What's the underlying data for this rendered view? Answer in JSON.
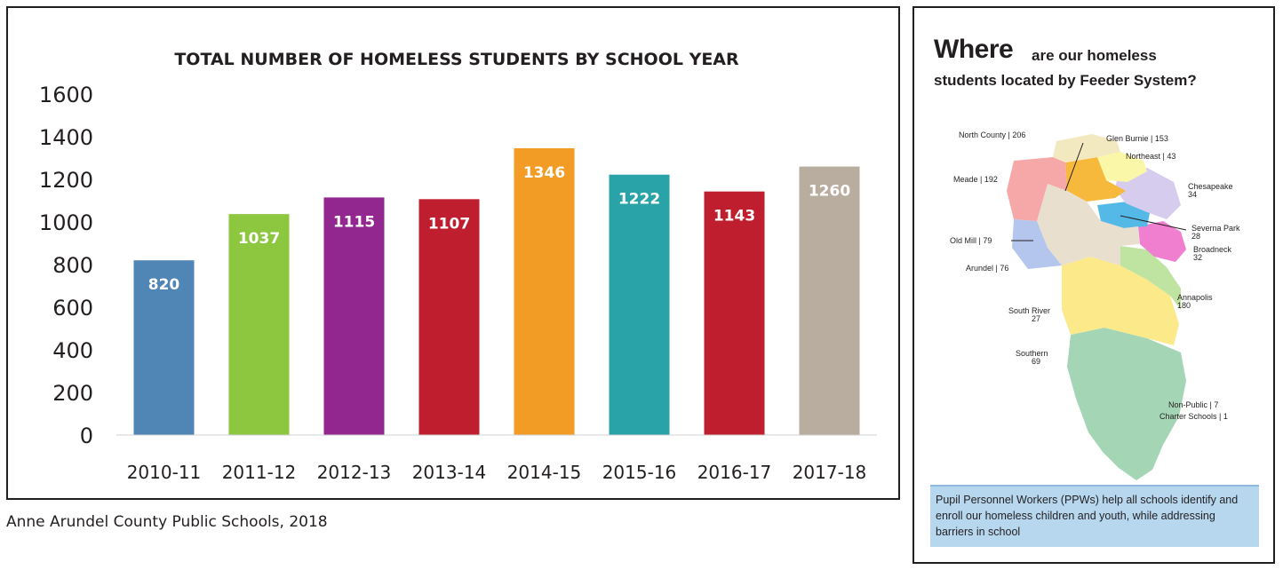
{
  "chart_data": {
    "type": "bar",
    "title": "TOTAL NUMBER OF HOMELESS STUDENTS BY SCHOOL YEAR",
    "categories": [
      "2010-11",
      "2011-12",
      "2012-13",
      "2013-14",
      "2014-15",
      "2015-16",
      "2016-17",
      "2017-18"
    ],
    "values": [
      820,
      1037,
      1115,
      1107,
      1346,
      1222,
      1143,
      1260
    ],
    "value_labels": [
      "820",
      "1037",
      "1115",
      "1107",
      "1346",
      "1222",
      "1143",
      "1260"
    ],
    "colors": [
      "#4f86b6",
      "#8dc63f",
      "#92278f",
      "#be1e2d",
      "#f29b25",
      "#29a3a8",
      "#be1e2d",
      "#b9ada0"
    ],
    "ylim": [
      0,
      1600
    ],
    "yticks": [
      "0",
      "200",
      "400",
      "600",
      "800",
      "1000",
      "1200",
      "1400",
      "1600"
    ],
    "xlabel": "",
    "ylabel": "",
    "grid": false,
    "legend": "none"
  },
  "source_note": "Anne Arundel County Public Schools, 2018",
  "map_panel": {
    "title_big": "Where",
    "title_rest": "are our homeless",
    "title_line2": "students located by Feeder System?",
    "regions": [
      {
        "name": "North County | 206",
        "color": "#f3e9c0"
      },
      {
        "name": "Glen Burnie | 153",
        "color": "#f6b93b"
      },
      {
        "name": "Northeast | 43",
        "color": "#fbf7a8"
      },
      {
        "name": "Meade | 192",
        "color": "#f6a7a8"
      },
      {
        "name": "Chesapeake 34",
        "color": "#d6ccee"
      },
      {
        "name": "Severna Park 28",
        "color": "#55b9e8"
      },
      {
        "name": "Old Mill | 79",
        "color": "#b4c6ee"
      },
      {
        "name": "Broadneck 32",
        "color": "#f07fd0"
      },
      {
        "name": "Arundel | 76",
        "color": "#b4c6ee"
      },
      {
        "name": "Annapolis 180",
        "color": "#bfe3a0"
      },
      {
        "name": "South River 27",
        "color": "#fbe98a"
      },
      {
        "name": "Southern 69",
        "color": "#a4d6b5"
      },
      {
        "name": "Non-Public | 7",
        "color": ""
      },
      {
        "name": "Charter Schools | 1",
        "color": ""
      }
    ],
    "labels": {
      "north_county": "North County | 206",
      "glen_burnie": "Glen Burnie | 153",
      "northeast": "Northeast | 43",
      "meade": "Meade | 192",
      "chesapeake_1": "Chesapeake",
      "chesapeake_2": "34",
      "severna_park_1": "Severna Park",
      "severna_park_2": "28",
      "old_mill": "Old Mill | 79",
      "broadneck_1": "Broadneck",
      "broadneck_2": "32",
      "arundel": "Arundel | 76",
      "annapolis_1": "Annapolis",
      "annapolis_2": "180",
      "south_river_1": "South River",
      "south_river_2": "27",
      "southern_1": "Southern",
      "southern_2": "69",
      "non_public": "Non-Public | 7",
      "charter": "Charter Schools | 1"
    },
    "ppw_text": "Pupil Personnel Workers (PPWs) help all schools identify and enroll our homeless children and youth, while addressing barriers in school"
  }
}
